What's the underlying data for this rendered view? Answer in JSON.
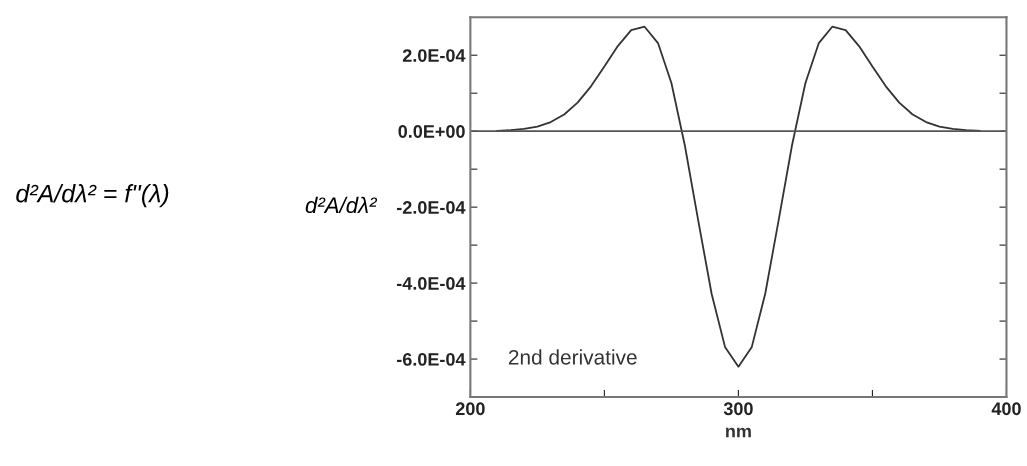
{
  "chart_data": {
    "type": "line",
    "xlabel": "nm",
    "ylabel": "d²A/dλ²",
    "annotations": [
      "d²A/dλ² = f''(λ)"
    ],
    "x": [
      210,
      215,
      220,
      225,
      230,
      235,
      240,
      245,
      250,
      255,
      260,
      265,
      270,
      275,
      280,
      285,
      290,
      295,
      300,
      305,
      310,
      315,
      320,
      325,
      330,
      335,
      340,
      345,
      350,
      355,
      360,
      365,
      370,
      375,
      380,
      385,
      390
    ],
    "series": [
      {
        "name": "2nd derivative",
        "color": "#333333",
        "values": [
          1e-06,
          2.6e-06,
          5.9e-06,
          1.2e-05,
          2.4e-05,
          4.4e-05,
          7.5e-05,
          0.000118,
          0.00017,
          0.000224,
          0.000266,
          0.000275,
          0.000232,
          0.000127,
          -3.7e-05,
          -0.000235,
          -0.000428,
          -0.000568,
          -0.00062,
          -0.000568,
          -0.000428,
          -0.000235,
          -3.7e-05,
          0.000127,
          0.000232,
          0.000275,
          0.000266,
          0.000224,
          0.00017,
          0.000118,
          7.5e-05,
          4.4e-05,
          2.4e-05,
          1.2e-05,
          5.9e-06,
          2.6e-06,
          1e-06
        ]
      }
    ],
    "xlim": [
      200,
      400
    ],
    "ylim": [
      -0.0007,
      0.0003
    ],
    "xticks": [
      200,
      {
        "value": 250,
        "label": null
      },
      300,
      {
        "value": 350,
        "label": null
      },
      400
    ],
    "yticks": [
      {
        "value": -0.0007,
        "label": null
      },
      {
        "value": -0.0006,
        "label": "-6.0E-04"
      },
      {
        "value": -0.0005,
        "label": null
      },
      {
        "value": -0.0004,
        "label": "-4.0E-04"
      },
      {
        "value": -0.0003,
        "label": null
      },
      {
        "value": -0.0002,
        "label": "-2.0E-04"
      },
      {
        "value": -0.0001,
        "label": null
      },
      {
        "value": 0,
        "label": "0.0E+00"
      },
      {
        "value": 0.0001,
        "label": null
      },
      {
        "value": 0.0002,
        "label": "2.0E-04"
      }
    ],
    "ref_lines": [
      {
        "axis": "y",
        "value": 0,
        "color": "#555555"
      }
    ],
    "grid": false,
    "legend": false,
    "marker": "none",
    "line_style": "solid"
  }
}
